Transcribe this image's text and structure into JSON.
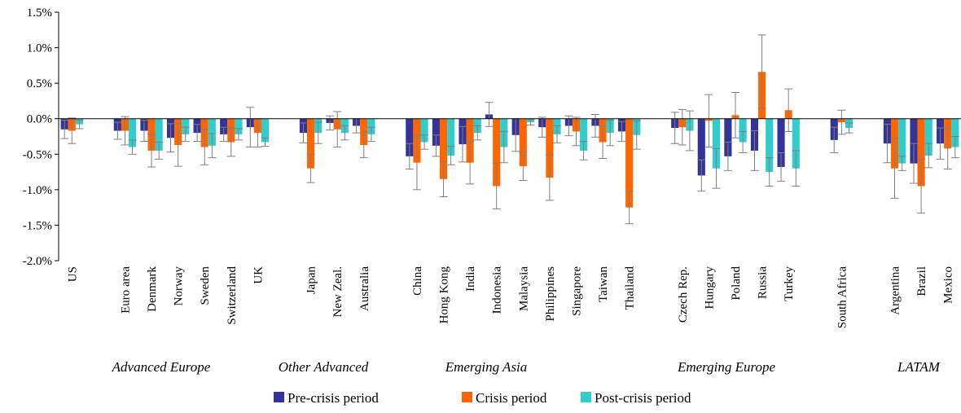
{
  "chart_data": {
    "type": "bar",
    "categories": [
      "US",
      null,
      "Euro area",
      "Denmark",
      "Norway",
      "Sweden",
      "Switzerland",
      "UK",
      null,
      "Japan",
      "New Zeal.",
      "Australia",
      null,
      "China",
      "Hong Kong",
      "India",
      "Indonesia",
      "Malaysia",
      "Philippines",
      "Singapore",
      "Taiwan",
      "Thailand",
      null,
      "Czech Rep.",
      "Hungary",
      "Poland",
      "Russia",
      "Turkey",
      null,
      "South Africa",
      null,
      "Argentina",
      "Brazil",
      "Mexico"
    ],
    "groups": [
      "Advanced Europe",
      "Other Advanced",
      "Emerging Asia",
      "Emerging Europe",
      "LATAM"
    ],
    "series": [
      {
        "name": "Pre-crisis period",
        "color": "#333399",
        "values": [
          -0.15,
          null,
          -0.17,
          -0.17,
          -0.27,
          -0.2,
          -0.22,
          -0.12,
          null,
          -0.2,
          -0.06,
          -0.1,
          null,
          -0.53,
          -0.38,
          -0.36,
          0.06,
          -0.23,
          -0.12,
          -0.1,
          -0.1,
          -0.18,
          null,
          -0.13,
          -0.8,
          -0.53,
          -0.45,
          -0.68,
          null,
          -0.3,
          null,
          -0.35,
          -0.63,
          -0.35
        ],
        "errors": [
          0.13,
          null,
          0.12,
          0.15,
          0.2,
          0.12,
          0.1,
          0.28,
          null,
          0.14,
          0.1,
          0.1,
          null,
          0.18,
          0.15,
          0.25,
          0.17,
          0.23,
          0.14,
          0.14,
          0.16,
          0.14,
          null,
          0.22,
          0.22,
          0.2,
          0.28,
          0.2,
          null,
          0.18,
          null,
          0.27,
          0.28,
          0.22
        ]
      },
      {
        "name": "Crisis period",
        "color": "#ff6600",
        "values": [
          -0.17,
          null,
          -0.17,
          -0.45,
          -0.37,
          -0.4,
          -0.33,
          -0.2,
          null,
          -0.7,
          -0.15,
          -0.37,
          null,
          -0.62,
          -0.85,
          -0.62,
          -0.95,
          -0.67,
          -0.83,
          -0.18,
          -0.33,
          -1.25,
          null,
          -0.12,
          -0.03,
          0.05,
          0.66,
          0.12,
          null,
          -0.05,
          null,
          -0.7,
          -0.95,
          -0.42
        ],
        "errors": [
          0.18,
          null,
          0.2,
          0.23,
          0.3,
          0.25,
          0.2,
          0.2,
          null,
          0.2,
          0.25,
          0.18,
          null,
          0.38,
          0.25,
          0.3,
          0.32,
          0.2,
          0.32,
          0.2,
          0.23,
          0.23,
          null,
          0.25,
          0.37,
          0.32,
          0.52,
          0.3,
          null,
          0.17,
          null,
          0.42,
          0.38,
          0.29
        ]
      },
      {
        "name": "Post-crisis period",
        "color": "#33cccc",
        "values": [
          -0.08,
          null,
          -0.4,
          -0.45,
          -0.22,
          -0.38,
          -0.22,
          -0.33,
          null,
          -0.2,
          -0.2,
          -0.22,
          null,
          -0.33,
          -0.52,
          -0.2,
          -0.4,
          -0.05,
          -0.22,
          -0.45,
          -0.2,
          -0.23,
          null,
          -0.17,
          -0.7,
          -0.33,
          -0.75,
          -0.7,
          null,
          -0.13,
          null,
          -0.63,
          -0.52,
          -0.4
        ],
        "errors": [
          0.06,
          null,
          0.1,
          0.12,
          0.1,
          0.17,
          0.08,
          0.06,
          null,
          0.15,
          0.1,
          0.1,
          null,
          0.1,
          0.13,
          0.1,
          0.22,
          0.04,
          0.12,
          0.13,
          0.18,
          0.2,
          null,
          0.28,
          0.28,
          0.15,
          0.2,
          0.25,
          null,
          0.07,
          null,
          0.1,
          0.17,
          0.15
        ]
      }
    ],
    "ylim": [
      -2.0,
      1.5
    ],
    "yticks": [
      {
        "value": -2.0,
        "label": "-2.0%"
      },
      {
        "value": -1.5,
        "label": "-1.5%"
      },
      {
        "value": -1.0,
        "label": "-1.0%"
      },
      {
        "value": -0.5,
        "label": "-0.5%"
      },
      {
        "value": 0.0,
        "label": "0.0%"
      },
      {
        "value": 0.5,
        "label": "0.5%"
      },
      {
        "value": 1.0,
        "label": "1.0%"
      },
      {
        "value": 1.5,
        "label": "1.5%"
      }
    ],
    "legend": "bottom"
  }
}
